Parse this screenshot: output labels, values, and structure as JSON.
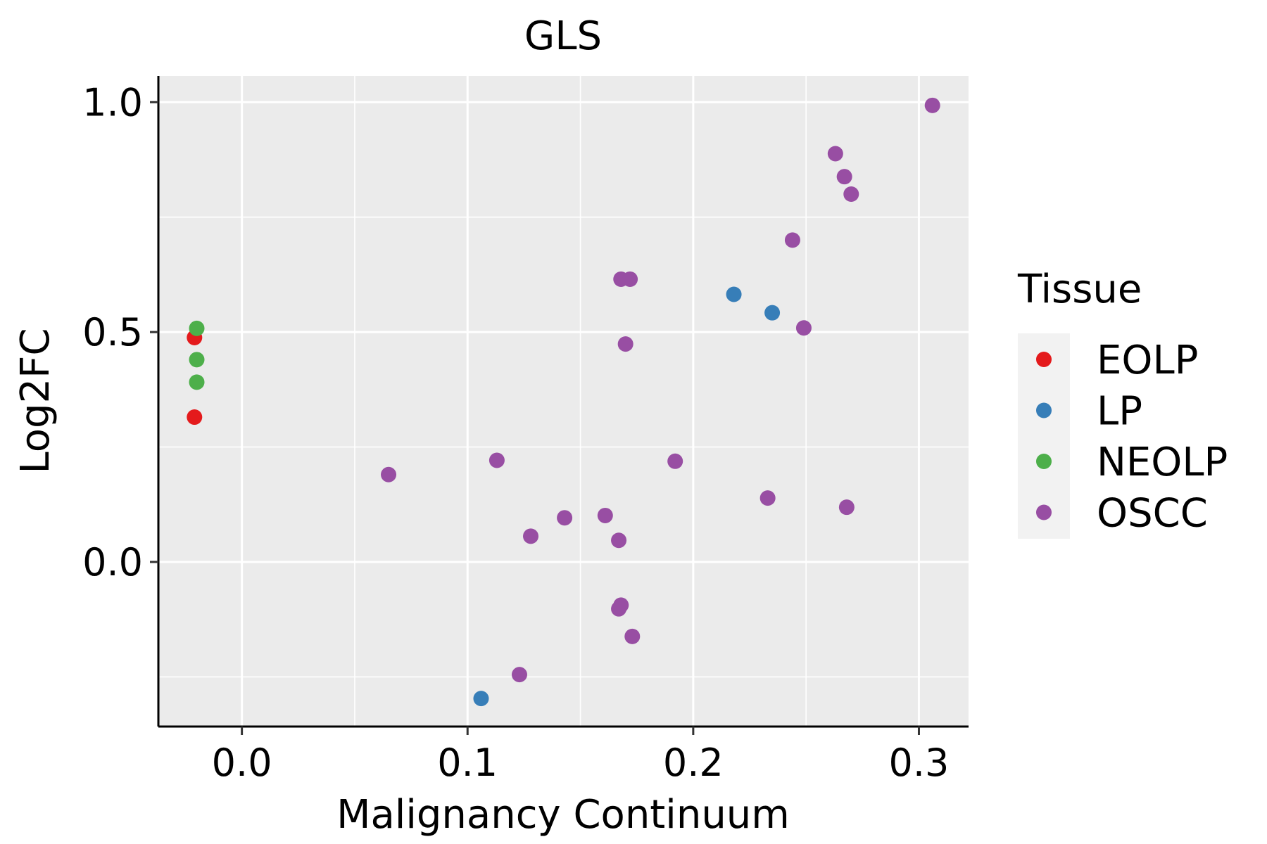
{
  "chart_data": {
    "type": "scatter",
    "title": "GLS",
    "xlabel": "Malignancy Continuum",
    "ylabel": "Log2FC",
    "xlim": [
      -0.037,
      0.322
    ],
    "ylim": [
      -0.358,
      1.057
    ],
    "x_ticks": [
      {
        "value": 0.0,
        "label": "0.0"
      },
      {
        "value": 0.1,
        "label": "0.1"
      },
      {
        "value": 0.2,
        "label": "0.2"
      },
      {
        "value": 0.3,
        "label": "0.3"
      }
    ],
    "y_ticks": [
      {
        "value": 0.0,
        "label": "0.0"
      },
      {
        "value": 0.5,
        "label": "0.5"
      },
      {
        "value": 1.0,
        "label": "1.0"
      }
    ],
    "x_minor_grid": [
      0.05,
      0.15,
      0.25
    ],
    "y_minor_grid": [
      -0.25,
      0.25,
      0.75
    ],
    "grid": true,
    "panel_background": "#EBEBEB",
    "legend": {
      "title": "Tissue",
      "position": "right"
    },
    "series": [
      {
        "name": "EOLP",
        "color": "#E41A1C",
        "points": [
          {
            "x": -0.021,
            "y": 0.488
          },
          {
            "x": -0.021,
            "y": 0.315
          }
        ]
      },
      {
        "name": "LP",
        "color": "#377EB8",
        "points": [
          {
            "x": 0.106,
            "y": -0.297
          },
          {
            "x": 0.218,
            "y": 0.582
          },
          {
            "x": 0.235,
            "y": 0.542
          }
        ]
      },
      {
        "name": "NEOLP",
        "color": "#4DAF4A",
        "points": [
          {
            "x": -0.02,
            "y": 0.508
          },
          {
            "x": -0.02,
            "y": 0.44
          },
          {
            "x": -0.02,
            "y": 0.391
          }
        ]
      },
      {
        "name": "OSCC",
        "color": "#984EA3",
        "points": [
          {
            "x": 0.306,
            "y": 0.993
          },
          {
            "x": 0.263,
            "y": 0.888
          },
          {
            "x": 0.267,
            "y": 0.838
          },
          {
            "x": 0.27,
            "y": 0.8
          },
          {
            "x": 0.244,
            "y": 0.7
          },
          {
            "x": 0.168,
            "y": 0.615
          },
          {
            "x": 0.172,
            "y": 0.615
          },
          {
            "x": 0.249,
            "y": 0.509
          },
          {
            "x": 0.17,
            "y": 0.474
          },
          {
            "x": 0.065,
            "y": 0.19
          },
          {
            "x": 0.113,
            "y": 0.221
          },
          {
            "x": 0.192,
            "y": 0.219
          },
          {
            "x": 0.233,
            "y": 0.139
          },
          {
            "x": 0.268,
            "y": 0.119
          },
          {
            "x": 0.143,
            "y": 0.096
          },
          {
            "x": 0.161,
            "y": 0.101
          },
          {
            "x": 0.128,
            "y": 0.056
          },
          {
            "x": 0.167,
            "y": 0.047
          },
          {
            "x": 0.168,
            "y": -0.094
          },
          {
            "x": 0.167,
            "y": -0.102
          },
          {
            "x": 0.173,
            "y": -0.162
          },
          {
            "x": 0.123,
            "y": -0.245
          }
        ]
      }
    ]
  }
}
